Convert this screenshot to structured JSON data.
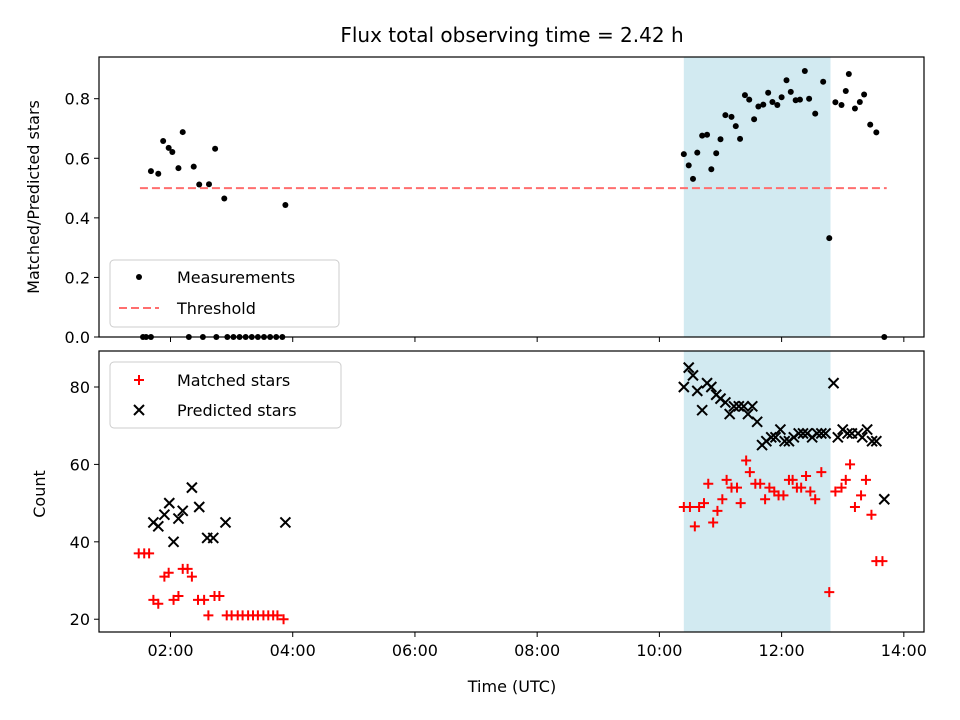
{
  "chart_data": {
    "type": "scatter",
    "title": "Flux total observing time = 2.42 h",
    "xlabel": "Time (UTC)",
    "x_ticks": [
      "02:00",
      "04:00",
      "06:00",
      "08:00",
      "10:00",
      "12:00",
      "14:00"
    ],
    "xlim_hours": [
      0.83,
      14.33
    ],
    "highlight_span_hours": [
      10.4,
      12.8
    ],
    "colors": {
      "measurements": "#000000",
      "threshold": "#ff6e6e",
      "matched": "#ff0000",
      "predicted": "#000000",
      "span": "#add8e6"
    },
    "top": {
      "ylabel": "Matched/Predicted stars",
      "ylim": [
        0,
        0.94
      ],
      "y_ticks": [
        "0.0",
        "0.2",
        "0.4",
        "0.6",
        "0.8"
      ],
      "legend": [
        "Measurements",
        "Threshold"
      ],
      "threshold": 0.5,
      "threshold_range_hours": [
        1.5,
        13.72
      ],
      "measurements": [
        [
          1.55,
          0
        ],
        [
          1.6,
          0
        ],
        [
          1.68,
          0
        ],
        [
          1.68,
          0.557
        ],
        [
          1.8,
          0.548
        ],
        [
          1.88,
          0.658
        ],
        [
          1.97,
          0.635
        ],
        [
          2.03,
          0.621
        ],
        [
          2.13,
          0.567
        ],
        [
          2.2,
          0.688
        ],
        [
          2.3,
          0
        ],
        [
          2.38,
          0.572
        ],
        [
          2.47,
          0.512
        ],
        [
          2.53,
          0
        ],
        [
          2.63,
          0.513
        ],
        [
          2.73,
          0.632
        ],
        [
          2.75,
          0
        ],
        [
          2.88,
          0.465
        ],
        [
          2.93,
          0
        ],
        [
          3.03,
          0
        ],
        [
          3.13,
          0
        ],
        [
          3.23,
          0
        ],
        [
          3.33,
          0
        ],
        [
          3.43,
          0
        ],
        [
          3.53,
          0
        ],
        [
          3.63,
          0
        ],
        [
          3.73,
          0
        ],
        [
          3.83,
          0
        ],
        [
          3.88,
          0.443
        ],
        [
          10.4,
          0.614
        ],
        [
          10.48,
          0.576
        ],
        [
          10.55,
          0.531
        ],
        [
          10.62,
          0.619
        ],
        [
          10.7,
          0.676
        ],
        [
          10.78,
          0.679
        ],
        [
          10.85,
          0.563
        ],
        [
          10.93,
          0.617
        ],
        [
          11.0,
          0.664
        ],
        [
          11.08,
          0.745
        ],
        [
          11.18,
          0.739
        ],
        [
          11.25,
          0.708
        ],
        [
          11.32,
          0.665
        ],
        [
          11.4,
          0.812
        ],
        [
          11.47,
          0.797
        ],
        [
          11.55,
          0.731
        ],
        [
          11.62,
          0.774
        ],
        [
          11.7,
          0.78
        ],
        [
          11.78,
          0.82
        ],
        [
          11.85,
          0.789
        ],
        [
          11.93,
          0.779
        ],
        [
          12.0,
          0.805
        ],
        [
          12.08,
          0.862
        ],
        [
          12.15,
          0.823
        ],
        [
          12.23,
          0.795
        ],
        [
          12.3,
          0.797
        ],
        [
          12.38,
          0.893
        ],
        [
          12.45,
          0.8
        ],
        [
          12.55,
          0.75
        ],
        [
          12.68,
          0.857
        ],
        [
          12.78,
          0.332
        ],
        [
          12.88,
          0.788
        ],
        [
          12.98,
          0.779
        ],
        [
          13.05,
          0.826
        ],
        [
          13.1,
          0.883
        ],
        [
          13.2,
          0.767
        ],
        [
          13.28,
          0.789
        ],
        [
          13.35,
          0.814
        ],
        [
          13.45,
          0.713
        ],
        [
          13.55,
          0.687
        ],
        [
          13.68,
          0
        ]
      ]
    },
    "bottom": {
      "ylabel": "Count",
      "ylim": [
        16.7,
        89.3
      ],
      "y_ticks": [
        "20",
        "40",
        "60",
        "80"
      ],
      "legend": [
        "Matched stars",
        "Predicted stars"
      ],
      "matched": [
        [
          1.48,
          37
        ],
        [
          1.57,
          37
        ],
        [
          1.65,
          37
        ],
        [
          1.72,
          25
        ],
        [
          1.8,
          24
        ],
        [
          1.9,
          31
        ],
        [
          1.97,
          32
        ],
        [
          2.05,
          25
        ],
        [
          2.13,
          26
        ],
        [
          2.2,
          33
        ],
        [
          2.28,
          33
        ],
        [
          2.35,
          31
        ],
        [
          2.45,
          25
        ],
        [
          2.55,
          25
        ],
        [
          2.62,
          21
        ],
        [
          2.72,
          26
        ],
        [
          2.8,
          26
        ],
        [
          2.92,
          21
        ],
        [
          3.0,
          21
        ],
        [
          3.1,
          21
        ],
        [
          3.18,
          21
        ],
        [
          3.27,
          21
        ],
        [
          3.35,
          21
        ],
        [
          3.43,
          21
        ],
        [
          3.52,
          21
        ],
        [
          3.6,
          21
        ],
        [
          3.68,
          21
        ],
        [
          3.75,
          21
        ],
        [
          3.85,
          20
        ],
        [
          10.4,
          49
        ],
        [
          10.5,
          49
        ],
        [
          10.58,
          44
        ],
        [
          10.65,
          49
        ],
        [
          10.73,
          50
        ],
        [
          10.8,
          55
        ],
        [
          10.88,
          45
        ],
        [
          10.95,
          48
        ],
        [
          11.03,
          51
        ],
        [
          11.1,
          56
        ],
        [
          11.18,
          54
        ],
        [
          11.27,
          54
        ],
        [
          11.33,
          50
        ],
        [
          11.42,
          61
        ],
        [
          11.48,
          58
        ],
        [
          11.57,
          55
        ],
        [
          11.65,
          55
        ],
        [
          11.73,
          51
        ],
        [
          11.8,
          54
        ],
        [
          11.88,
          53
        ],
        [
          11.95,
          52
        ],
        [
          12.03,
          52
        ],
        [
          12.12,
          56
        ],
        [
          12.18,
          56
        ],
        [
          12.25,
          54
        ],
        [
          12.32,
          54
        ],
        [
          12.4,
          57
        ],
        [
          12.47,
          53
        ],
        [
          12.55,
          51
        ],
        [
          12.65,
          58
        ],
        [
          12.78,
          27
        ],
        [
          12.88,
          53
        ],
        [
          12.98,
          54
        ],
        [
          13.05,
          56
        ],
        [
          13.12,
          60
        ],
        [
          13.2,
          49
        ],
        [
          13.3,
          52
        ],
        [
          13.38,
          56
        ],
        [
          13.47,
          47
        ],
        [
          13.55,
          35
        ],
        [
          13.65,
          35
        ]
      ],
      "predicted": [
        [
          1.72,
          45
        ],
        [
          1.8,
          44
        ],
        [
          1.9,
          47
        ],
        [
          1.98,
          50
        ],
        [
          2.05,
          40
        ],
        [
          2.13,
          46
        ],
        [
          2.2,
          48
        ],
        [
          2.35,
          54
        ],
        [
          2.47,
          49
        ],
        [
          2.6,
          41
        ],
        [
          2.7,
          41
        ],
        [
          2.9,
          45
        ],
        [
          3.88,
          45
        ],
        [
          10.4,
          80
        ],
        [
          10.48,
          85
        ],
        [
          10.55,
          83
        ],
        [
          10.62,
          79
        ],
        [
          10.7,
          74
        ],
        [
          10.78,
          81
        ],
        [
          10.85,
          80
        ],
        [
          10.93,
          78
        ],
        [
          11.0,
          77
        ],
        [
          11.08,
          76
        ],
        [
          11.15,
          73
        ],
        [
          11.22,
          75
        ],
        [
          11.3,
          75
        ],
        [
          11.38,
          75
        ],
        [
          11.45,
          73
        ],
        [
          11.52,
          75
        ],
        [
          11.6,
          71
        ],
        [
          11.68,
          65
        ],
        [
          11.75,
          66
        ],
        [
          11.83,
          67
        ],
        [
          11.9,
          67
        ],
        [
          11.98,
          69
        ],
        [
          12.05,
          66
        ],
        [
          12.12,
          66
        ],
        [
          12.2,
          67
        ],
        [
          12.28,
          68
        ],
        [
          12.35,
          68
        ],
        [
          12.42,
          68
        ],
        [
          12.5,
          67
        ],
        [
          12.58,
          68
        ],
        [
          12.65,
          68
        ],
        [
          12.72,
          68
        ],
        [
          12.85,
          81
        ],
        [
          12.92,
          67
        ],
        [
          13.0,
          69
        ],
        [
          13.08,
          68
        ],
        [
          13.15,
          68
        ],
        [
          13.25,
          68
        ],
        [
          13.32,
          67
        ],
        [
          13.4,
          69
        ],
        [
          13.48,
          66
        ],
        [
          13.55,
          66
        ],
        [
          13.68,
          51
        ]
      ]
    }
  }
}
